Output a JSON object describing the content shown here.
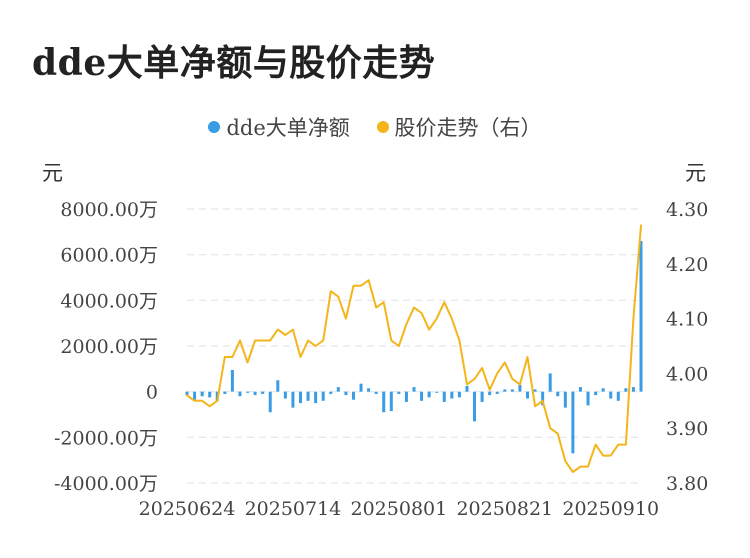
{
  "chart_data": {
    "type": "bar+line",
    "title": "dde大单净额与股价走势",
    "legend": [
      {
        "name": "dde大单净额",
        "color": "#3b9ce6"
      },
      {
        "name": "股价走势（右）",
        "color": "#f3b51a"
      }
    ],
    "left_unit": "元",
    "right_unit": "元",
    "left_axis": {
      "ticks": [
        "8000.00万",
        "6000.00万",
        "4000.00万",
        "2000.00万",
        "0",
        "-2000.00万",
        "-4000.00万"
      ],
      "ylim": [
        -4000,
        8000
      ],
      "unit": "万"
    },
    "right_axis": {
      "ticks": [
        "4.30",
        "4.20",
        "4.10",
        "4.00",
        "3.90",
        "3.80"
      ],
      "ylim": [
        3.8,
        4.3
      ]
    },
    "x_tick_labels": [
      "20250624",
      "20250714",
      "20250801",
      "20250821",
      "20250910"
    ],
    "x_tick_indices": [
      0,
      14,
      28,
      42,
      56
    ],
    "grid": true,
    "dde_values": [
      -150,
      -350,
      -200,
      -250,
      -400,
      -100,
      950,
      -200,
      -50,
      -150,
      -100,
      -900,
      500,
      -300,
      -700,
      -500,
      -400,
      -500,
      -400,
      -100,
      200,
      -150,
      -350,
      350,
      150,
      -100,
      -900,
      -850,
      -100,
      -450,
      200,
      -400,
      -250,
      -50,
      -450,
      -300,
      -250,
      250,
      -1300,
      -450,
      -150,
      -100,
      100,
      100,
      300,
      -300,
      100,
      -600,
      800,
      -200,
      -700,
      -2700,
      200,
      -600,
      -150,
      150,
      -300,
      -400,
      150,
      200,
      6600
    ],
    "price_values": [
      3.96,
      3.95,
      3.95,
      3.94,
      3.95,
      4.03,
      4.03,
      4.06,
      4.02,
      4.06,
      4.06,
      4.06,
      4.08,
      4.07,
      4.08,
      4.03,
      4.06,
      4.05,
      4.06,
      4.15,
      4.14,
      4.1,
      4.16,
      4.16,
      4.17,
      4.12,
      4.13,
      4.06,
      4.05,
      4.09,
      4.12,
      4.11,
      4.08,
      4.1,
      4.13,
      4.1,
      4.06,
      3.98,
      3.99,
      4.01,
      3.97,
      4.0,
      4.02,
      3.99,
      3.98,
      4.03,
      3.94,
      3.95,
      3.9,
      3.89,
      3.84,
      3.82,
      3.83,
      3.83,
      3.87,
      3.85,
      3.85,
      3.87,
      3.87,
      4.1,
      4.27
    ]
  }
}
